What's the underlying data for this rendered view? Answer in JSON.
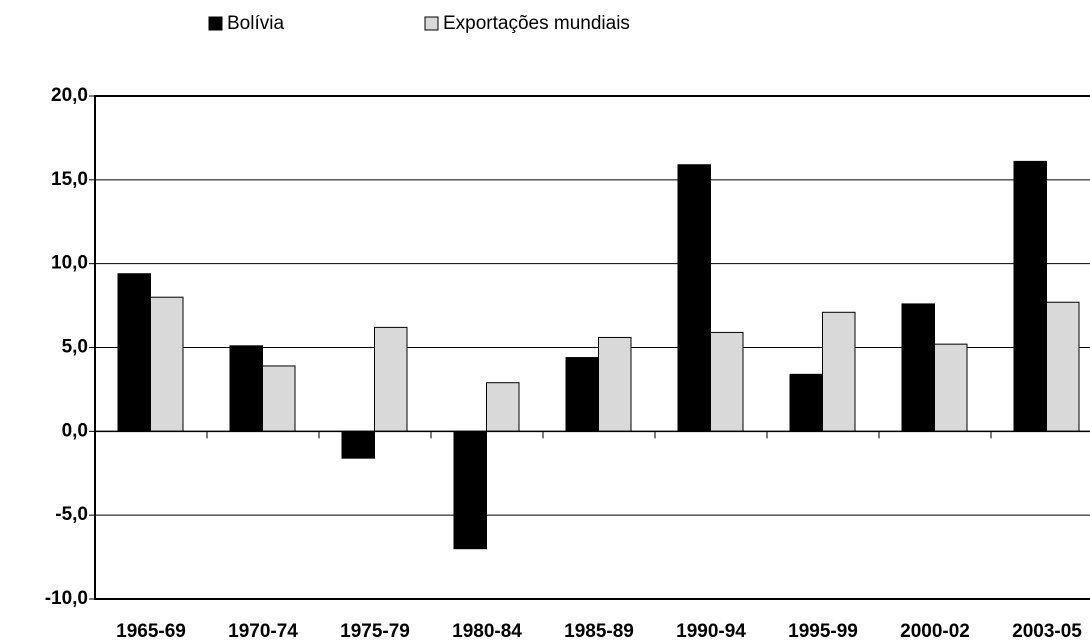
{
  "chart_data": {
    "type": "bar",
    "categories": [
      "1965-69",
      "1970-74",
      "1975-79",
      "1980-84",
      "1985-89",
      "1990-94",
      "1995-99",
      "2000-02",
      "2003-05"
    ],
    "series": [
      {
        "name": "Bolívia",
        "color": "#000000",
        "values": [
          9.4,
          5.1,
          -1.6,
          -7.0,
          4.4,
          15.9,
          3.4,
          7.6,
          16.1
        ]
      },
      {
        "name": "Exportações mundiais",
        "color": "#d9d9d9",
        "values": [
          8.0,
          3.9,
          6.2,
          2.9,
          5.6,
          5.9,
          7.1,
          5.2,
          7.7
        ]
      }
    ],
    "ylim": [
      -10,
      20
    ],
    "yticks": [
      {
        "value": -10,
        "label": "-10,0"
      },
      {
        "value": -5,
        "label": "-5,0"
      },
      {
        "value": 0,
        "label": "0,0"
      },
      {
        "value": 5,
        "label": "5,0"
      },
      {
        "value": 10,
        "label": "10,0"
      },
      {
        "value": 15,
        "label": "15,0"
      },
      {
        "value": 20,
        "label": "20,0"
      }
    ],
    "grid": true,
    "legend": "top"
  }
}
